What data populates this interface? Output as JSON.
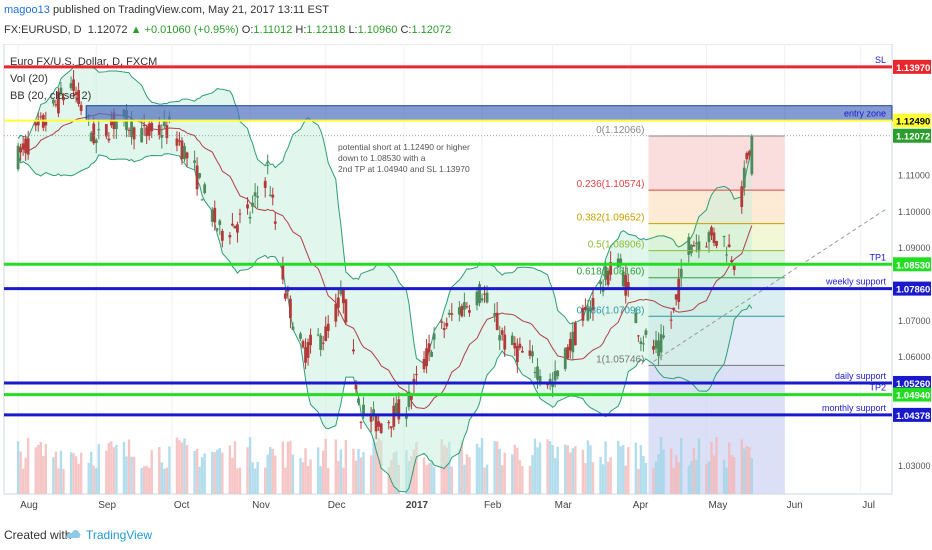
{
  "header": {
    "user": "magoo13",
    "published": "published on TradingView.com, May 21, 2017 13:11 EST",
    "symbol": "FX:EURUSD, D",
    "last": "1.12072",
    "change": "+0.01060 (+0.95%)",
    "o_label": "O:",
    "o": "1.11012",
    "h_label": "H:",
    "h": "1.12118",
    "l_label": "L:",
    "l": "1.10960",
    "c_label": "C:",
    "c": "1.12072"
  },
  "legend": {
    "title": "Euro FX/U.S. Dollar, D, FXCM",
    "vol": "Vol (20)",
    "bb": "BB (20, close, 2)"
  },
  "annotation": [
    "potential short at 1.12490 or higher",
    "down to 1.08530 with a",
    "2nd TP at 1.04940 and SL 1.13970"
  ],
  "footer": {
    "created": "Created with",
    "brand": "TradingView"
  },
  "colors": {
    "red": "#e8262b",
    "green": "#22dd22",
    "blue": "#1a1acc",
    "yellow": "#ffff33",
    "zone": "#4f6fbf",
    "up": "#2a9d2a"
  },
  "chart_data": {
    "type": "candlestick",
    "symbol": "EURUSD",
    "timeframe": "D",
    "ylim": [
      1.022,
      1.146
    ],
    "x_ticks": [
      "Aug",
      "Sep",
      "Oct",
      "Nov",
      "Dec",
      "2017",
      "Feb",
      "Mar",
      "Apr",
      "May",
      "Jun",
      "Jul"
    ],
    "y_ticks": [
      "1.11000",
      "1.10000",
      "1.09000",
      "1.07000",
      "1.06000",
      "1.05000",
      "1.03000"
    ],
    "close_path": [
      {
        "date": "2016-08-01",
        "close": 1.115
      },
      {
        "date": "2016-08-12",
        "close": 1.125
      },
      {
        "date": "2016-08-22",
        "close": 1.135
      },
      {
        "date": "2016-09-01",
        "close": 1.119
      },
      {
        "date": "2016-09-10",
        "close": 1.126
      },
      {
        "date": "2016-09-20",
        "close": 1.121
      },
      {
        "date": "2016-10-01",
        "close": 1.123
      },
      {
        "date": "2016-10-10",
        "close": 1.111
      },
      {
        "date": "2016-10-20",
        "close": 1.094
      },
      {
        "date": "2016-11-01",
        "close": 1.099
      },
      {
        "date": "2016-11-08",
        "close": 1.111
      },
      {
        "date": "2016-11-15",
        "close": 1.078
      },
      {
        "date": "2016-11-22",
        "close": 1.061
      },
      {
        "date": "2016-12-01",
        "close": 1.066
      },
      {
        "date": "2016-12-08",
        "close": 1.077
      },
      {
        "date": "2016-12-15",
        "close": 1.045
      },
      {
        "date": "2016-12-22",
        "close": 1.041
      },
      {
        "date": "2017-01-02",
        "close": 1.046
      },
      {
        "date": "2017-01-12",
        "close": 1.063
      },
      {
        "date": "2017-01-20",
        "close": 1.071
      },
      {
        "date": "2017-02-01",
        "close": 1.078
      },
      {
        "date": "2017-02-10",
        "close": 1.064
      },
      {
        "date": "2017-02-20",
        "close": 1.059
      },
      {
        "date": "2017-03-01",
        "close": 1.052
      },
      {
        "date": "2017-03-10",
        "close": 1.066
      },
      {
        "date": "2017-03-20",
        "close": 1.079
      },
      {
        "date": "2017-03-27",
        "close": 1.087
      },
      {
        "date": "2017-04-05",
        "close": 1.066
      },
      {
        "date": "2017-04-12",
        "close": 1.061
      },
      {
        "date": "2017-04-18",
        "close": 1.072
      },
      {
        "date": "2017-04-24",
        "close": 1.091
      },
      {
        "date": "2017-05-02",
        "close": 1.093
      },
      {
        "date": "2017-05-08",
        "close": 1.092
      },
      {
        "date": "2017-05-12",
        "close": 1.087
      },
      {
        "date": "2017-05-16",
        "close": 1.109
      },
      {
        "date": "2017-05-19",
        "close": 1.1207
      }
    ],
    "price_levels": [
      {
        "name": "SL",
        "value": 1.1397,
        "color": "#e8262b",
        "label": "1.13970"
      },
      {
        "name": "entry zone",
        "value": 1.1249,
        "color": "#ffff33",
        "label": "1.12490"
      },
      {
        "name": "last",
        "value": 1.12072,
        "color": "#2a9d2a",
        "label": "1.12072"
      },
      {
        "name": "TP1",
        "value": 1.0853,
        "color": "#22dd22",
        "label": "1.08530"
      },
      {
        "name": "weekly support",
        "value": 1.0786,
        "color": "#1a1acc",
        "label": "1.07860"
      },
      {
        "name": "daily support",
        "value": 1.0526,
        "color": "#1a1acc",
        "label": "1.05260"
      },
      {
        "name": "TP2",
        "value": 1.0494,
        "color": "#22dd22",
        "label": "1.04940"
      },
      {
        "name": "monthly support",
        "value": 1.0438,
        "color": "#1a1acc",
        "label": "1.04378"
      }
    ],
    "zone": {
      "name": "entry zone",
      "low": 1.1249,
      "high": 1.129
    },
    "fibonacci": [
      {
        "ratio": "0",
        "label": "0(1.12066)",
        "value": 1.12066
      },
      {
        "ratio": "0.236",
        "label": "0.236(1.10574)",
        "value": 1.10574
      },
      {
        "ratio": "0.382",
        "label": "0.382(1.09652)",
        "value": 1.09652
      },
      {
        "ratio": "0.5",
        "label": "0.5(1.08906)",
        "value": 1.08906
      },
      {
        "ratio": "0.618",
        "label": "0.618(1.08160)",
        "value": 1.0816
      },
      {
        "ratio": "0.786",
        "label": "0.786(1.07098)",
        "value": 1.07098
      },
      {
        "ratio": "1",
        "label": "1(1.05746)",
        "value": 1.05746
      }
    ]
  }
}
